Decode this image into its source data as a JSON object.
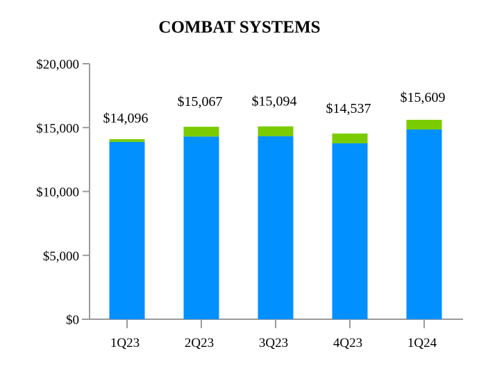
{
  "chart_data": {
    "type": "bar",
    "stacked": true,
    "title": "COMBAT SYSTEMS",
    "categories": [
      "1Q23",
      "2Q23",
      "3Q23",
      "4Q23",
      "1Q24"
    ],
    "series": [
      {
        "color": "#0090FF",
        "values": [
          13880,
          14300,
          14330,
          13770,
          14850
        ]
      },
      {
        "color": "#7ACC00",
        "values": [
          216,
          767,
          764,
          767,
          759
        ]
      }
    ],
    "totals": [
      14096,
      15067,
      15094,
      14537,
      15609
    ],
    "total_labels": [
      "$14,096",
      "$15,067",
      "$15,094",
      "$14,537",
      "$15,609"
    ],
    "ylim": [
      0,
      20000
    ],
    "yticks": [
      0,
      5000,
      10000,
      15000,
      20000
    ],
    "ytick_labels": [
      "$0",
      "$5,000",
      "$10,000",
      "$15,000",
      "$20,000"
    ],
    "xlabel": "",
    "ylabel": "",
    "grid": false,
    "legend": "none"
  }
}
